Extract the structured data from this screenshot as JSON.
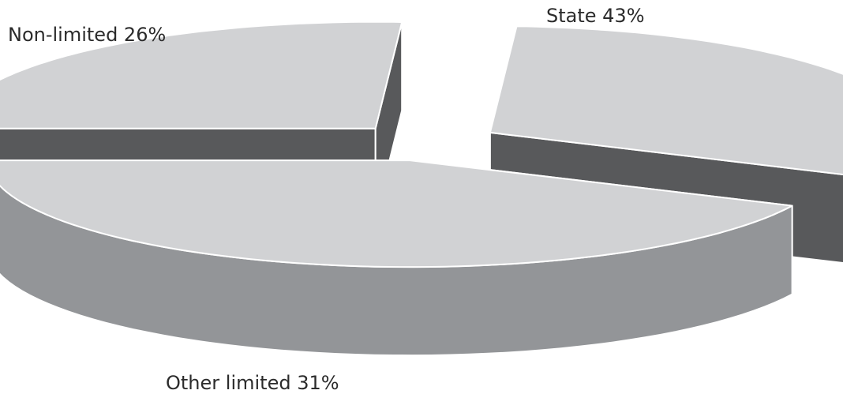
{
  "chart_data": {
    "type": "pie",
    "style": "3d-exploded",
    "title": "",
    "categories": [
      "Non-limited",
      "Other limited",
      "State"
    ],
    "values": [
      26,
      31,
      43
    ],
    "labels": [
      "Non-limited 26%",
      "Other limited 31%",
      "State 43%"
    ],
    "legend": "none",
    "colors": {
      "top": "#d1d2d4",
      "side": "#939598",
      "inner_face": "#58595b",
      "stroke": "#ffffff"
    }
  }
}
